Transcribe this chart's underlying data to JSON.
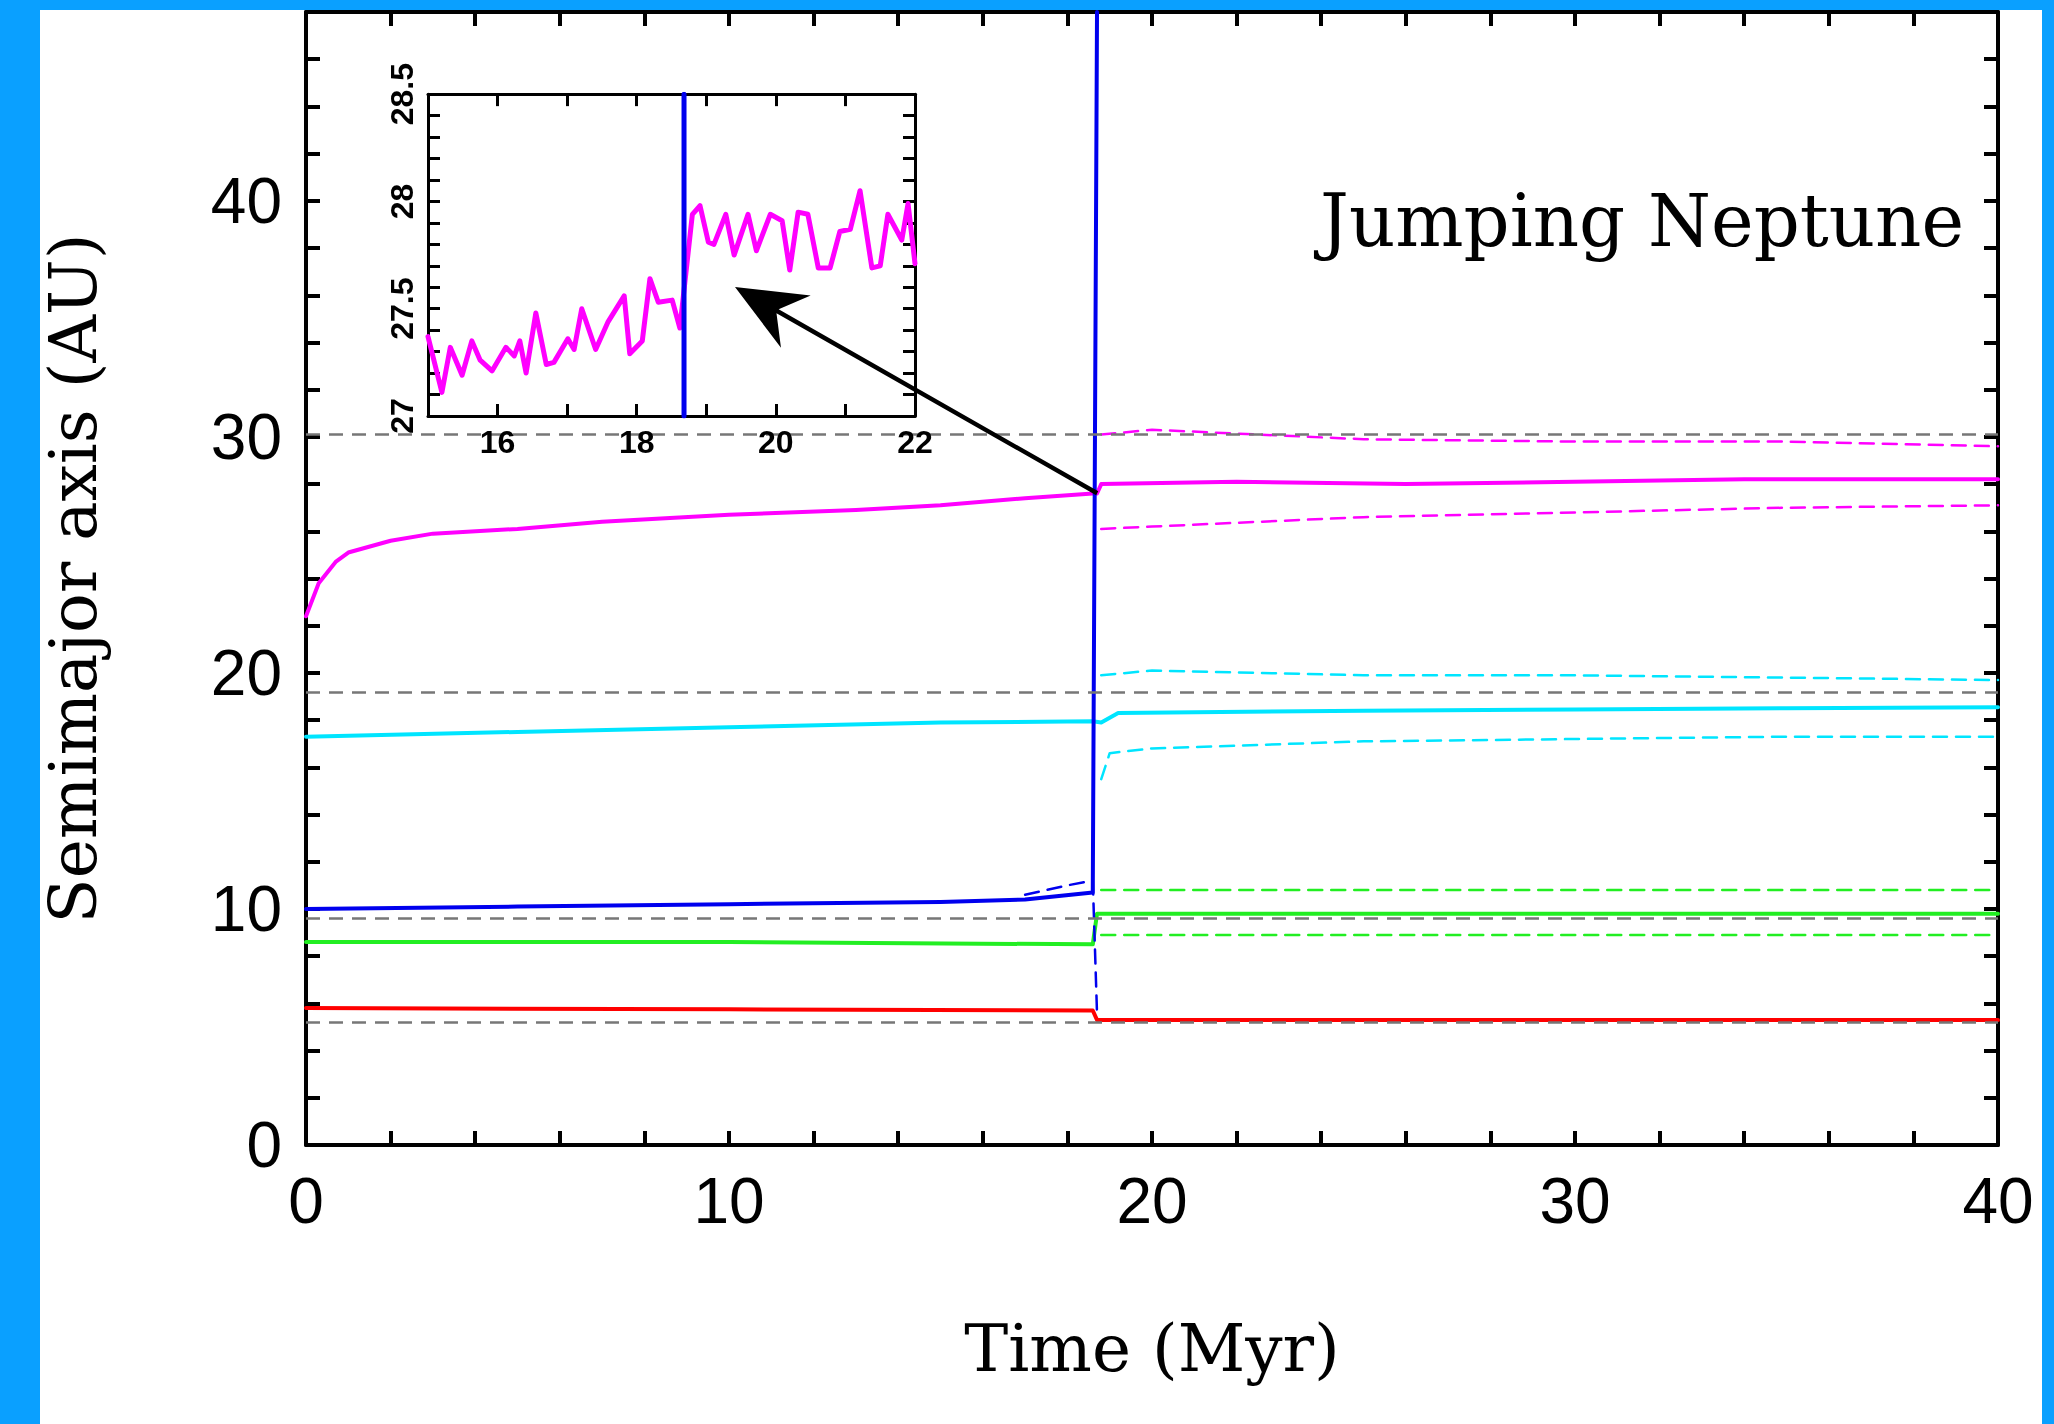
{
  "chart_data": [
    {
      "type": "line",
      "xlabel": "Time (Myr)",
      "ylabel": "Semimajor axis (AU)",
      "annotations": [
        "Jumping Neptune"
      ],
      "marker": "none",
      "grid": false,
      "xlim": [
        0,
        40
      ],
      "ylim": [
        0,
        48
      ],
      "xticks": [
        0,
        {
          "value": 2,
          "label": null
        },
        {
          "value": 4,
          "label": null
        },
        {
          "value": 6,
          "label": null
        },
        {
          "value": 8,
          "label": null
        },
        10,
        {
          "value": 12,
          "label": null
        },
        {
          "value": 14,
          "label": null
        },
        {
          "value": 16,
          "label": null
        },
        {
          "value": 18,
          "label": null
        },
        20,
        {
          "value": 22,
          "label": null
        },
        {
          "value": 24,
          "label": null
        },
        {
          "value": 26,
          "label": null
        },
        {
          "value": 28,
          "label": null
        },
        30,
        {
          "value": 32,
          "label": null
        },
        {
          "value": 34,
          "label": null
        },
        {
          "value": 36,
          "label": null
        },
        {
          "value": 38,
          "label": null
        },
        40
      ],
      "yticks": [
        0,
        {
          "value": 2,
          "label": null
        },
        {
          "value": 4,
          "label": null
        },
        {
          "value": 6,
          "label": null
        },
        {
          "value": 8,
          "label": null
        },
        10,
        {
          "value": 12,
          "label": null
        },
        {
          "value": 14,
          "label": null
        },
        {
          "value": 16,
          "label": null
        },
        {
          "value": 18,
          "label": null
        },
        20,
        {
          "value": 22,
          "label": null
        },
        {
          "value": 24,
          "label": null
        },
        {
          "value": 26,
          "label": null
        },
        {
          "value": 28,
          "label": null
        },
        30,
        {
          "value": 32,
          "label": null
        },
        {
          "value": 34,
          "label": null
        },
        {
          "value": 36,
          "label": null
        },
        {
          "value": 38,
          "label": null
        },
        40,
        {
          "value": 42,
          "label": null
        },
        {
          "value": 44,
          "label": null
        },
        {
          "value": 46,
          "label": null
        },
        {
          "value": 48,
          "label": null
        }
      ],
      "ref_lines": [
        {
          "axis": "y",
          "value": 30.1,
          "color": "#777777",
          "line_style": "dashed"
        },
        {
          "axis": "y",
          "value": 19.2,
          "color": "#777777",
          "line_style": "dashed"
        },
        {
          "axis": "y",
          "value": 9.6,
          "color": "#777777",
          "line_style": "dashed"
        },
        {
          "axis": "y",
          "value": 5.2,
          "color": "#777777",
          "line_style": "dashed"
        }
      ],
      "series": [
        {
          "color": "#ff00ff",
          "line_style": "solid",
          "x": [
            0,
            0.3,
            0.7,
            1,
            2,
            3,
            5,
            7,
            10,
            13,
            15,
            17,
            18.6,
            18.7,
            18.8,
            22,
            26,
            30,
            34,
            38,
            40
          ],
          "values": [
            22.4,
            23.8,
            24.7,
            25.1,
            25.6,
            25.9,
            26.1,
            26.4,
            26.7,
            26.9,
            27.1,
            27.4,
            27.6,
            27.6,
            28.0,
            28.1,
            28.0,
            28.1,
            28.2,
            28.2,
            28.2
          ]
        },
        {
          "color": "#ff00ff",
          "line_style": "dashed",
          "x": [
            18.8,
            20,
            25,
            30,
            35,
            40
          ],
          "values": [
            30.1,
            30.3,
            29.9,
            29.8,
            29.8,
            29.6
          ]
        },
        {
          "color": "#ff00ff",
          "line_style": "dashed",
          "x": [
            18.8,
            20,
            25,
            30,
            35,
            40
          ],
          "values": [
            26.1,
            26.2,
            26.6,
            26.8,
            27.0,
            27.1
          ]
        },
        {
          "color": "#00e5ff",
          "line_style": "solid",
          "x": [
            0,
            5,
            10,
            15,
            18.6,
            18.8,
            19.2,
            25,
            30,
            35,
            40
          ],
          "values": [
            17.3,
            17.5,
            17.7,
            17.9,
            17.95,
            17.9,
            18.3,
            18.4,
            18.45,
            18.5,
            18.55
          ]
        },
        {
          "color": "#00e5ff",
          "line_style": "dashed",
          "x": [
            18.8,
            20,
            25,
            30,
            35,
            40
          ],
          "values": [
            19.9,
            20.1,
            19.9,
            19.9,
            19.8,
            19.7
          ]
        },
        {
          "color": "#00e5ff",
          "line_style": "dashed",
          "x": [
            18.8,
            19,
            20,
            25,
            30,
            35,
            40
          ],
          "values": [
            15.5,
            16.6,
            16.8,
            17.1,
            17.2,
            17.3,
            17.3
          ]
        },
        {
          "color": "#22ee22",
          "line_style": "solid",
          "x": [
            0,
            10,
            18.6,
            18.7,
            20,
            30,
            40
          ],
          "values": [
            8.6,
            8.6,
            8.5,
            9.8,
            9.8,
            9.8,
            9.8
          ]
        },
        {
          "color": "#22ee22",
          "line_style": "dashed",
          "x": [
            18.8,
            30,
            40
          ],
          "values": [
            10.8,
            10.8,
            10.8
          ]
        },
        {
          "color": "#22ee22",
          "line_style": "dashed",
          "x": [
            18.8,
            30,
            40
          ],
          "values": [
            8.9,
            8.9,
            8.9
          ]
        },
        {
          "color": "#ff0000",
          "line_style": "solid",
          "x": [
            0,
            10,
            18.6,
            18.7,
            30,
            40
          ],
          "values": [
            5.8,
            5.75,
            5.7,
            5.3,
            5.3,
            5.3
          ]
        },
        {
          "color": "#0000ee",
          "line_style": "dashed",
          "x": [
            17,
            18,
            18.6,
            18.7,
            18.8
          ],
          "values": [
            10.6,
            11.0,
            11.2,
            5.6,
            5.6
          ]
        },
        {
          "color": "#0000ee",
          "line_style": "solid",
          "x": [
            0,
            5,
            10,
            15,
            17,
            18.6,
            18.7
          ],
          "values": [
            10.0,
            10.1,
            10.2,
            10.3,
            10.4,
            10.7,
            48
          ]
        }
      ]
    },
    {
      "type": "line",
      "marker": "none",
      "grid": false,
      "xlim": [
        15,
        22
      ],
      "ylim": [
        27,
        28.5
      ],
      "xticks": [
        {
          "value": 15,
          "label": null
        },
        16,
        {
          "value": 17,
          "label": null
        },
        18,
        {
          "value": 19,
          "label": null
        },
        20,
        {
          "value": 21,
          "label": null
        },
        22
      ],
      "yticks": [
        27,
        {
          "value": 27.1,
          "label": null
        },
        {
          "value": 27.2,
          "label": null
        },
        {
          "value": 27.3,
          "label": null
        },
        {
          "value": 27.4,
          "label": null
        },
        27.5,
        {
          "value": 27.6,
          "label": null
        },
        {
          "value": 27.7,
          "label": null
        },
        {
          "value": 27.8,
          "label": null
        },
        {
          "value": 27.9,
          "label": null
        },
        28,
        {
          "value": 28.1,
          "label": null
        },
        {
          "value": 28.2,
          "label": null
        },
        {
          "value": 28.3,
          "label": null
        },
        {
          "value": 28.4,
          "label": null
        },
        28.5
      ],
      "series": [
        {
          "color": "#ff00ff",
          "line_style": "solid",
          "x": [
            15,
            15.2,
            15.32,
            15.49,
            15.63,
            15.75,
            15.92,
            16.12,
            16.24,
            16.32,
            16.41,
            16.55,
            16.7,
            16.81,
            17.01,
            17.1,
            17.21,
            17.41,
            17.59,
            17.82,
            17.9,
            18.08,
            18.19,
            18.31,
            18.51,
            18.62,
            18.8,
            18.91,
            19.03,
            19.11,
            19.28,
            19.4,
            19.6,
            19.72,
            19.92,
            20.09,
            20.2,
            20.32,
            20.46,
            20.61,
            20.78,
            20.92,
            21.07,
            21.21,
            21.38,
            21.5,
            21.61,
            21.81,
            21.9,
            22
          ],
          "values": [
            27.37,
            27.11,
            27.32,
            27.19,
            27.35,
            27.26,
            27.21,
            27.32,
            27.28,
            27.35,
            27.2,
            27.48,
            27.24,
            27.25,
            27.36,
            27.31,
            27.5,
            27.31,
            27.44,
            27.56,
            27.29,
            27.35,
            27.64,
            27.53,
            27.54,
            27.41,
            27.94,
            27.98,
            27.81,
            27.8,
            27.94,
            27.75,
            27.94,
            27.77,
            27.94,
            27.91,
            27.68,
            27.95,
            27.94,
            27.69,
            27.69,
            27.86,
            27.87,
            28.05,
            27.69,
            27.7,
            27.94,
            27.82,
            27.99,
            27.71
          ]
        },
        {
          "color": "#0000ee",
          "line_style": "solid",
          "x": [
            18.68,
            18.68
          ],
          "values": [
            27,
            28.5
          ]
        }
      ]
    }
  ]
}
